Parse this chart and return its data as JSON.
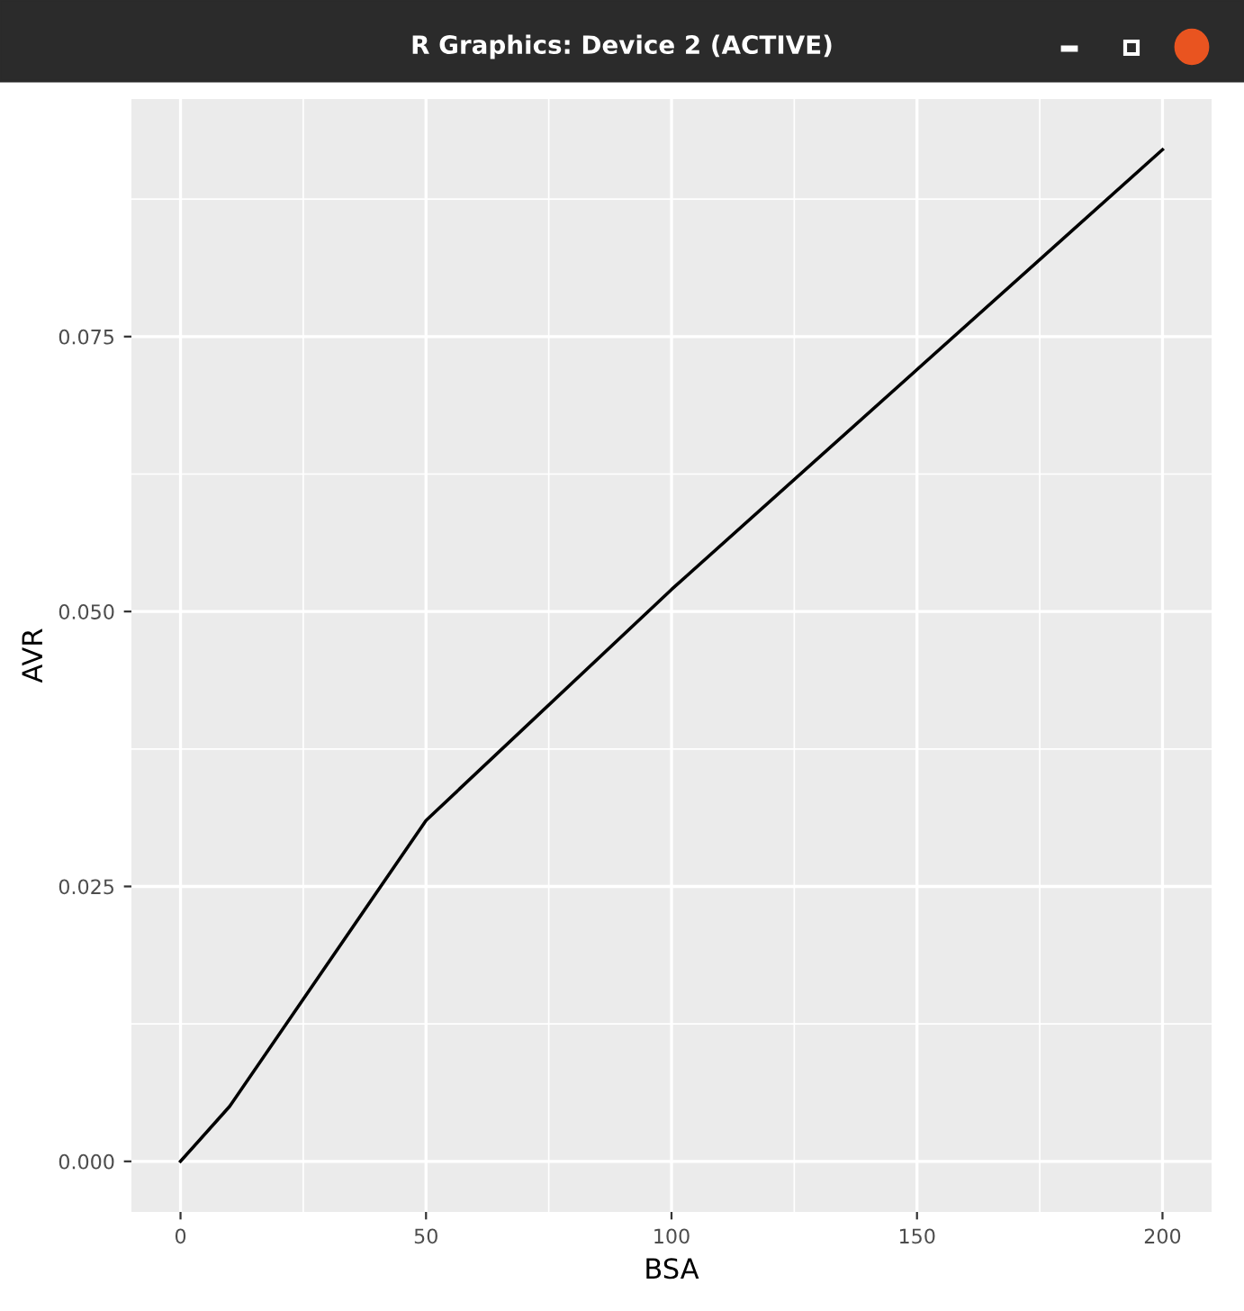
{
  "chart_data": {
    "type": "line",
    "title": "R Graphics: Device 2 (ACTIVE)",
    "xlabel": "BSA",
    "ylabel": "AVR",
    "x": [
      0,
      10,
      50,
      100,
      200
    ],
    "series": [
      {
        "color": "#000000",
        "values": [
          0,
          0.005,
          0.031,
          0.052,
          0.092
        ]
      }
    ],
    "xlim": [
      -10,
      210
    ],
    "ylim": [
      -0.0046,
      0.0966
    ],
    "xticks": [
      0,
      50,
      100,
      150,
      200
    ],
    "yticks": [
      {
        "value": 0,
        "label": "0.000"
      },
      {
        "value": 0.025,
        "label": "0.025"
      },
      {
        "value": 0.05,
        "label": "0.050"
      },
      {
        "value": 0.075,
        "label": "0.075"
      }
    ],
    "grid": true,
    "marker": "none",
    "line_style": "solid"
  }
}
